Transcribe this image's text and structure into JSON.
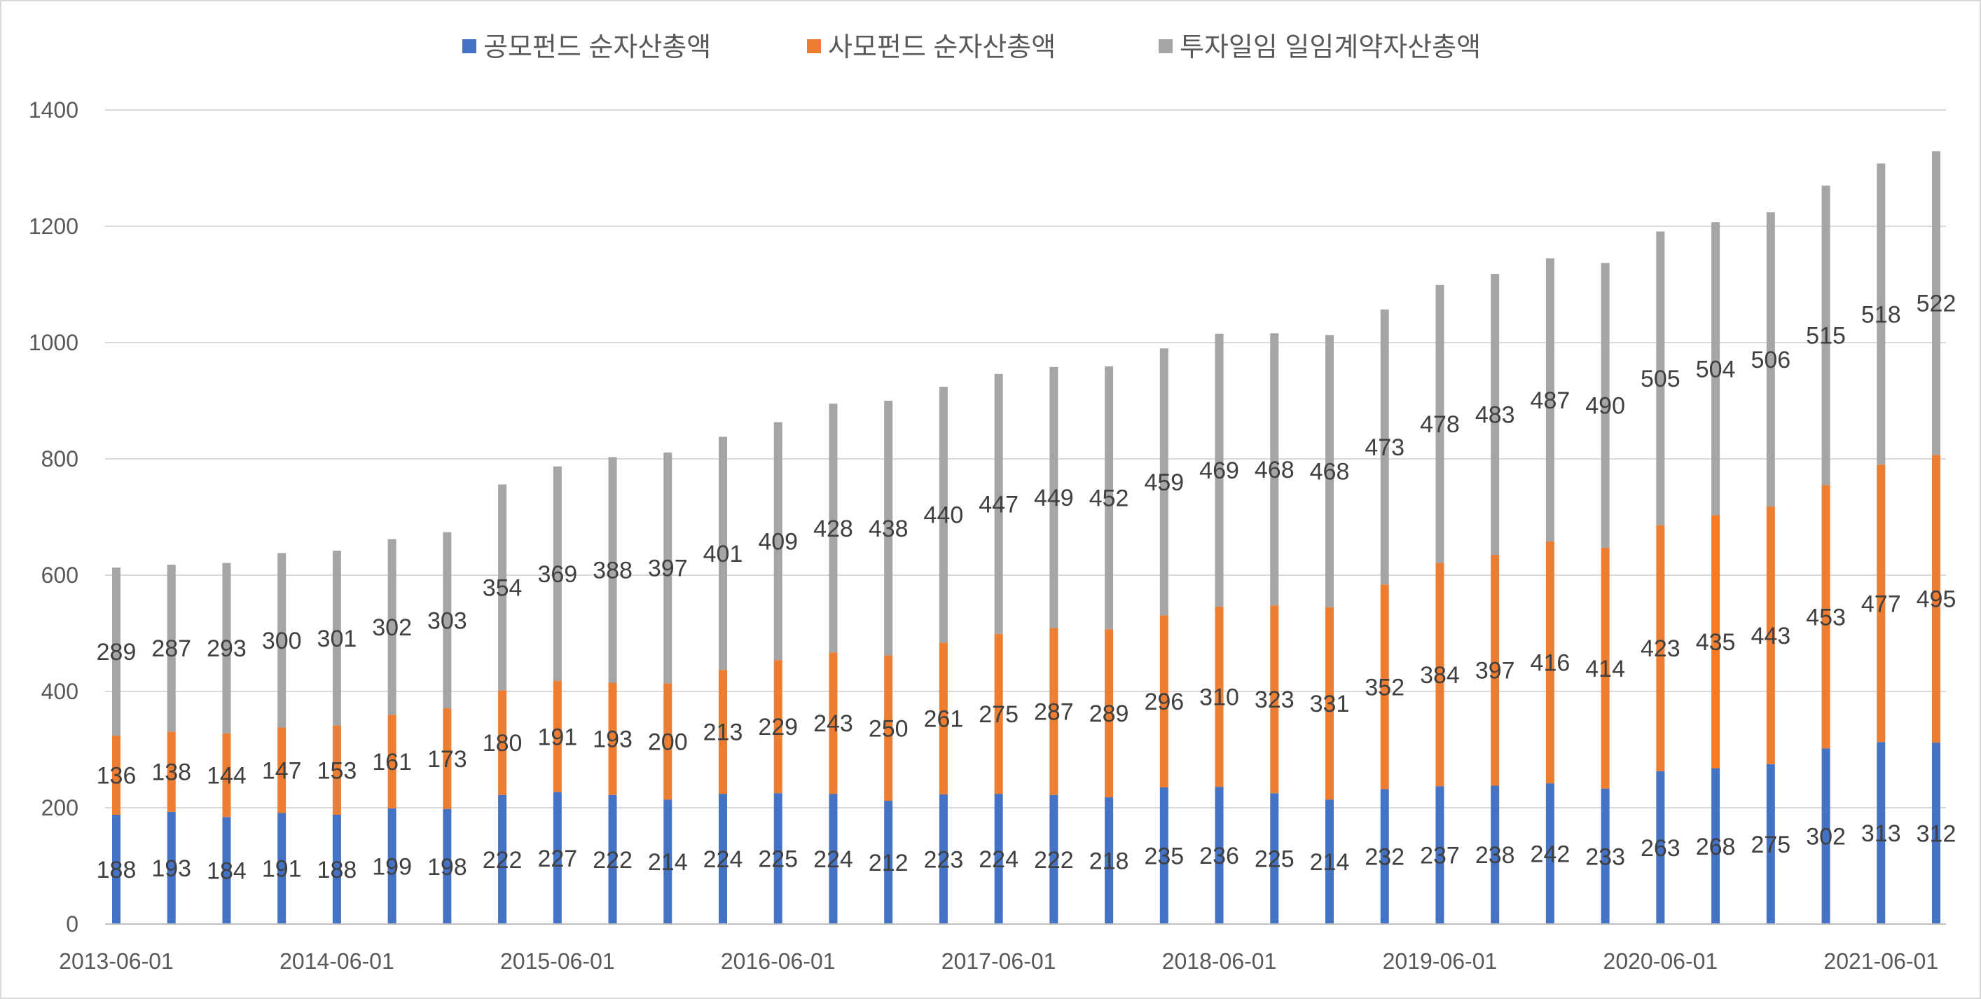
{
  "chart_data": {
    "type": "bar",
    "stacked": true,
    "title": "",
    "xlabel": "",
    "ylabel": "",
    "ylim": [
      0,
      1400
    ],
    "yticks": [
      "0",
      "200",
      "400",
      "600",
      "800",
      "1000",
      "1200",
      "1400"
    ],
    "grid": true,
    "legend_position": "top",
    "categories": [
      "2013-06-01",
      "2013-09-01",
      "2013-12-01",
      "2014-03-01",
      "2014-06-01",
      "2014-09-01",
      "2014-12-01",
      "2015-03-01",
      "2015-06-01",
      "2015-09-01",
      "2015-12-01",
      "2016-03-01",
      "2016-06-01",
      "2016-09-01",
      "2016-12-01",
      "2017-03-01",
      "2017-06-01",
      "2017-09-01",
      "2017-12-01",
      "2018-03-01",
      "2018-06-01",
      "2018-09-01",
      "2018-12-01",
      "2019-03-01",
      "2019-06-01",
      "2019-09-01",
      "2019-12-01",
      "2020-03-01",
      "2020-06-01",
      "2020-09-01",
      "2020-12-01",
      "2021-03-01",
      "2021-06-01",
      "2021-09-01"
    ],
    "xtick_labels": [
      "2013-06-01",
      "2014-06-01",
      "2015-06-01",
      "2016-06-01",
      "2017-06-01",
      "2018-06-01",
      "2019-06-01",
      "2020-06-01",
      "2021-06-01"
    ],
    "series": [
      {
        "name": "공모펀드 순자산총액",
        "color": "#4472C4",
        "values": [
          188,
          193,
          184,
          191,
          188,
          199,
          198,
          222,
          227,
          222,
          214,
          224,
          225,
          224,
          212,
          223,
          224,
          222,
          218,
          235,
          236,
          225,
          214,
          232,
          237,
          238,
          242,
          233,
          263,
          268,
          275,
          302,
          313,
          312
        ]
      },
      {
        "name": "사모펀드 순자산총액",
        "color": "#ED7D31",
        "values": [
          136,
          138,
          144,
          147,
          153,
          161,
          173,
          180,
          191,
          193,
          200,
          213,
          229,
          243,
          250,
          261,
          275,
          287,
          289,
          296,
          310,
          323,
          331,
          352,
          384,
          397,
          416,
          414,
          423,
          435,
          443,
          453,
          477,
          495
        ]
      },
      {
        "name": "투자일임 일임계약자산총액",
        "color": "#A5A5A5",
        "values": [
          289,
          287,
          293,
          300,
          301,
          302,
          303,
          354,
          369,
          388,
          397,
          401,
          409,
          428,
          438,
          440,
          447,
          449,
          452,
          459,
          469,
          468,
          468,
          473,
          478,
          483,
          487,
          490,
          505,
          504,
          506,
          515,
          518,
          522
        ]
      }
    ]
  }
}
